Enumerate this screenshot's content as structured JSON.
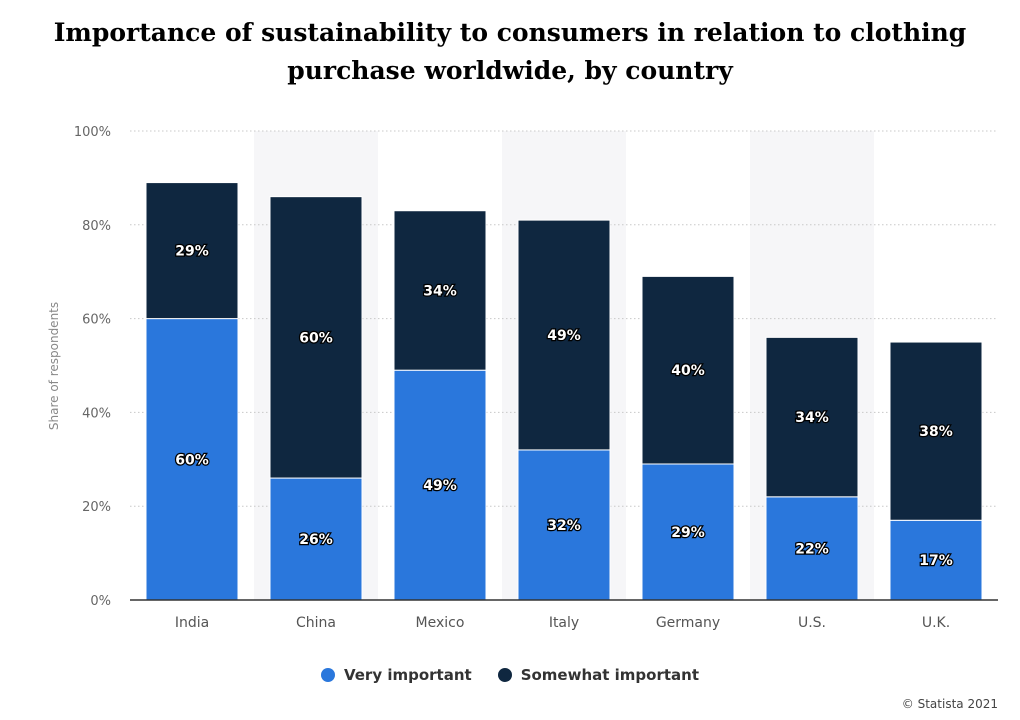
{
  "chart_data": {
    "type": "bar",
    "stacked": true,
    "title": "Importance of sustainability to consumers in relation to clothing purchase worldwide, by country",
    "xlabel": "",
    "ylabel": "Share of respondents",
    "ylim": [
      0,
      100
    ],
    "yticks": [
      "0%",
      "20%",
      "40%",
      "60%",
      "80%",
      "100%"
    ],
    "grid": true,
    "legend_position": "bottom",
    "categories": [
      "India",
      "China",
      "Mexico",
      "Italy",
      "Germany",
      "U.S.",
      "U.K."
    ],
    "series": [
      {
        "name": "Very important",
        "color": "#2a77dc",
        "values": [
          60,
          26,
          49,
          32,
          29,
          22,
          17
        ]
      },
      {
        "name": "Somewhat important",
        "color": "#0f2740",
        "values": [
          29,
          60,
          34,
          49,
          40,
          34,
          38
        ]
      }
    ]
  },
  "credit": "© Statista 2021"
}
